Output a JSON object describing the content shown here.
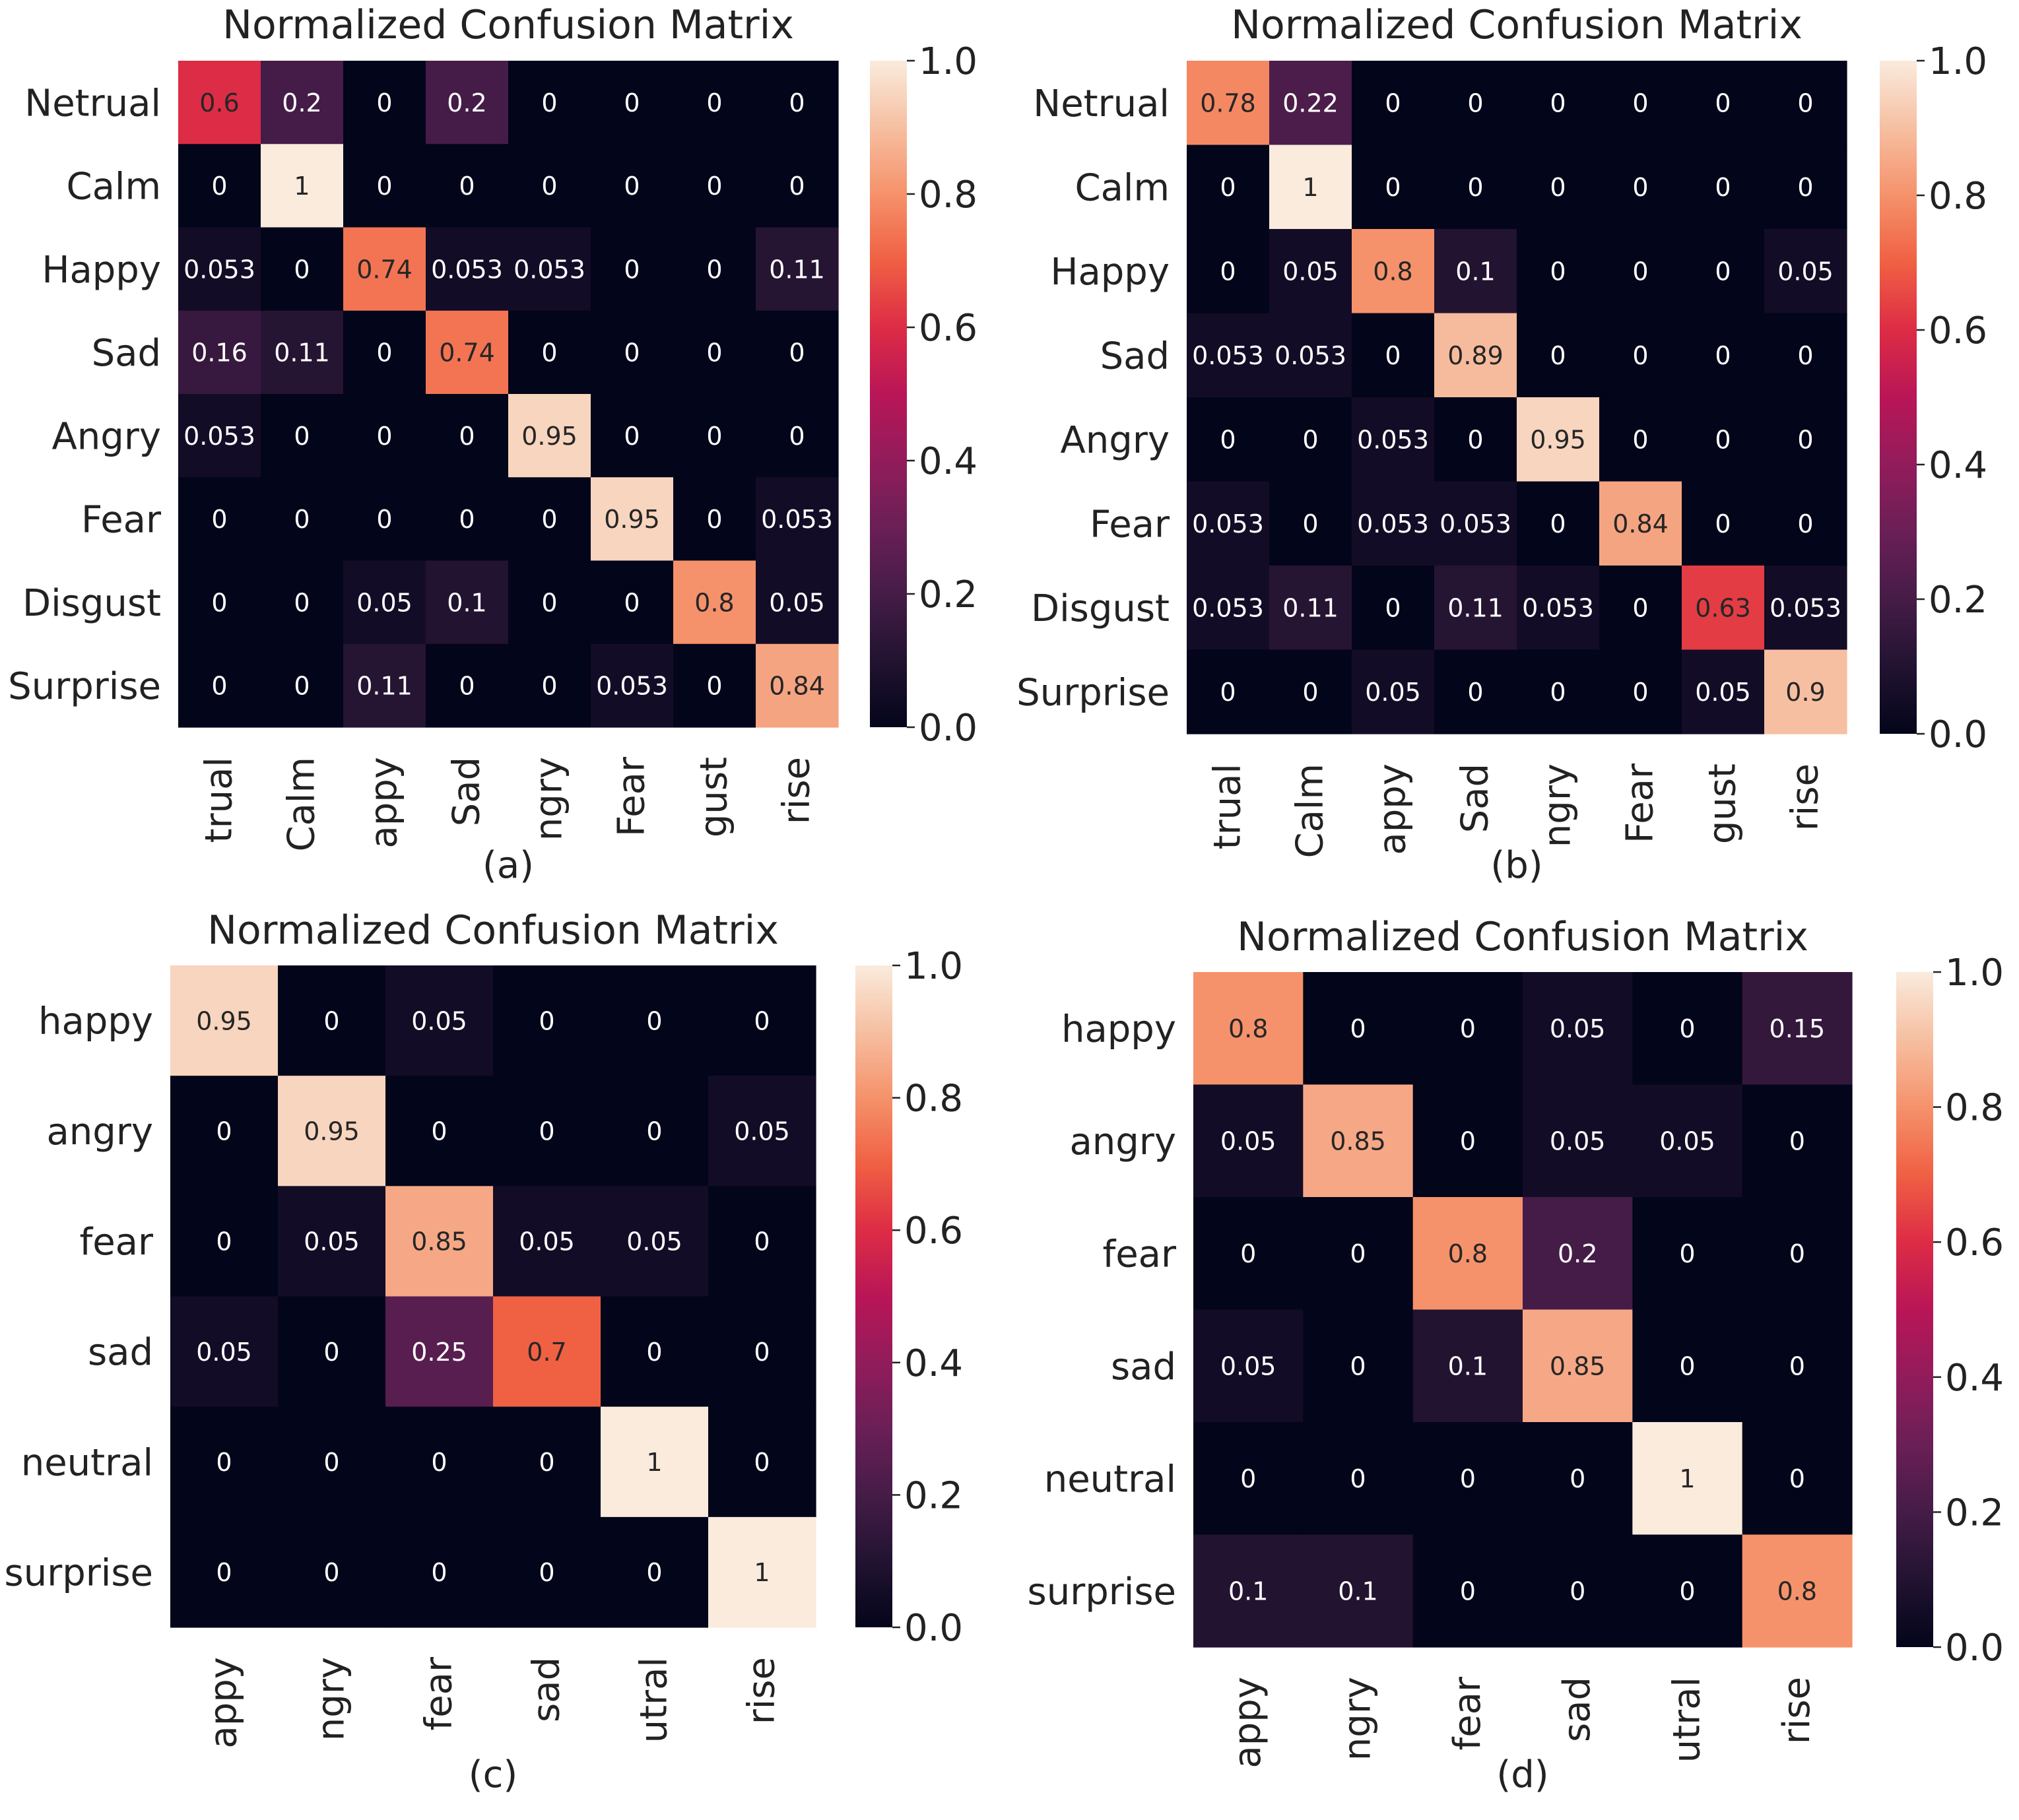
{
  "chart_data": [
    {
      "type": "heatmap",
      "panel_label": "(a)",
      "title": "Normalized Confusion Matrix",
      "row_labels": [
        "Netrual",
        "Calm",
        "Happy",
        "Sad",
        "Angry",
        "Fear",
        "Disgust",
        "Surprise"
      ],
      "col_labels": [
        "trual",
        "Calm",
        "appy",
        "Sad",
        "ngry",
        "Fear",
        "gust",
        "rise"
      ],
      "values": [
        [
          0.6,
          0.2,
          0,
          0.2,
          0,
          0,
          0,
          0
        ],
        [
          0,
          1,
          0,
          0,
          0,
          0,
          0,
          0
        ],
        [
          0.053,
          0,
          0.74,
          0.053,
          0.053,
          0,
          0,
          0.11
        ],
        [
          0.16,
          0.11,
          0,
          0.74,
          0,
          0,
          0,
          0
        ],
        [
          0.053,
          0,
          0,
          0,
          0.95,
          0,
          0,
          0
        ],
        [
          0,
          0,
          0,
          0,
          0,
          0.95,
          0,
          0.053
        ],
        [
          0,
          0,
          0.05,
          0.1,
          0,
          0,
          0.8,
          0.05
        ],
        [
          0,
          0,
          0.11,
          0,
          0,
          0.053,
          0,
          0.84
        ]
      ],
      "colorbar": {
        "min": 0.0,
        "max": 1.0,
        "ticks": [
          "0.0",
          "0.2",
          "0.4",
          "0.6",
          "0.8",
          "1.0"
        ]
      }
    },
    {
      "type": "heatmap",
      "panel_label": "(b)",
      "title": "Normalized Confusion Matrix",
      "row_labels": [
        "Netrual",
        "Calm",
        "Happy",
        "Sad",
        "Angry",
        "Fear",
        "Disgust",
        "Surprise"
      ],
      "col_labels": [
        "trual",
        "Calm",
        "appy",
        "Sad",
        "ngry",
        "Fear",
        "gust",
        "rise"
      ],
      "values": [
        [
          0.78,
          0.22,
          0,
          0,
          0,
          0,
          0,
          0
        ],
        [
          0,
          1,
          0,
          0,
          0,
          0,
          0,
          0
        ],
        [
          0,
          0.05,
          0.8,
          0.1,
          0,
          0,
          0,
          0.05
        ],
        [
          0.053,
          0.053,
          0,
          0.89,
          0,
          0,
          0,
          0
        ],
        [
          0,
          0,
          0.053,
          0,
          0.95,
          0,
          0,
          0
        ],
        [
          0.053,
          0,
          0.053,
          0.053,
          0,
          0.84,
          0,
          0
        ],
        [
          0.053,
          0.11,
          0,
          0.11,
          0.053,
          0,
          0.63,
          0.053
        ],
        [
          0,
          0,
          0.05,
          0,
          0,
          0,
          0.05,
          0.9
        ]
      ],
      "colorbar": {
        "min": 0.0,
        "max": 1.0,
        "ticks": [
          "0.0",
          "0.2",
          "0.4",
          "0.6",
          "0.8",
          "1.0"
        ]
      }
    },
    {
      "type": "heatmap",
      "panel_label": "(c)",
      "title": "Normalized Confusion Matrix",
      "row_labels": [
        "happy",
        "angry",
        "fear",
        "sad",
        "neutral",
        "surprise"
      ],
      "col_labels": [
        "appy",
        "ngry",
        "fear",
        "sad",
        "utral",
        "rise"
      ],
      "values": [
        [
          0.95,
          0,
          0.05,
          0,
          0,
          0
        ],
        [
          0,
          0.95,
          0,
          0,
          0,
          0.05
        ],
        [
          0,
          0.05,
          0.85,
          0.05,
          0.05,
          0
        ],
        [
          0.05,
          0,
          0.25,
          0.7,
          0,
          0
        ],
        [
          0,
          0,
          0,
          0,
          1,
          0
        ],
        [
          0,
          0,
          0,
          0,
          0,
          1
        ]
      ],
      "colorbar": {
        "min": 0.0,
        "max": 1.0,
        "ticks": [
          "0.0",
          "0.2",
          "0.4",
          "0.6",
          "0.8",
          "1.0"
        ]
      }
    },
    {
      "type": "heatmap",
      "panel_label": "(d)",
      "title": "Normalized Confusion Matrix",
      "row_labels": [
        "happy",
        "angry",
        "fear",
        "sad",
        "neutral",
        "surprise"
      ],
      "col_labels": [
        "appy",
        "ngry",
        "fear",
        "sad",
        "utral",
        "rise"
      ],
      "values": [
        [
          0.8,
          0,
          0,
          0.05,
          0,
          0.15
        ],
        [
          0.05,
          0.85,
          0,
          0.05,
          0.05,
          0
        ],
        [
          0,
          0,
          0.8,
          0.2,
          0,
          0
        ],
        [
          0.05,
          0,
          0.1,
          0.85,
          0,
          0
        ],
        [
          0,
          0,
          0,
          0,
          1,
          0
        ],
        [
          0.1,
          0.1,
          0,
          0,
          0,
          0.8
        ]
      ],
      "colorbar": {
        "min": 0.0,
        "max": 1.0,
        "ticks": [
          "0.0",
          "0.2",
          "0.4",
          "0.6",
          "0.8",
          "1.0"
        ]
      }
    }
  ]
}
